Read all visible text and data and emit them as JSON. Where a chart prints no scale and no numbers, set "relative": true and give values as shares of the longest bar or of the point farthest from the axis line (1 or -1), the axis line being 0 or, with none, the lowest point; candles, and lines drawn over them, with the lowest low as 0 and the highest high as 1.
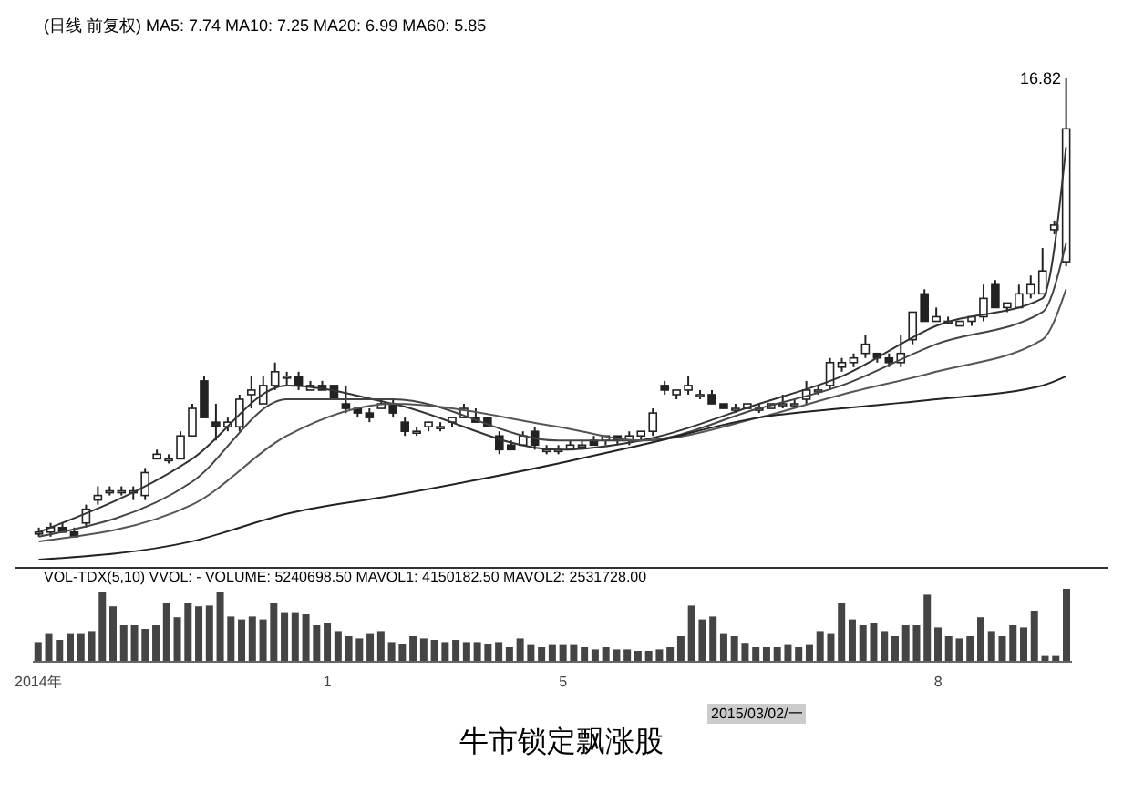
{
  "chart_data": [
    {
      "type": "candlestick",
      "title": "(日线 前复权) MA5: 7.74 MA10: 7.25 MA20: 6.99 MA60: 5.85",
      "relative": true,
      "tick_labels": false,
      "color": "#222222",
      "categories": [
        null,
        null,
        null,
        null,
        null,
        null,
        null,
        null,
        null,
        null,
        null,
        null,
        null,
        null,
        null,
        null,
        null,
        null,
        null,
        null,
        null,
        null,
        null,
        null,
        null,
        null,
        null,
        null,
        null,
        null,
        null,
        null,
        null,
        null,
        null,
        null,
        null,
        null,
        null,
        null,
        null,
        null,
        null,
        null,
        null,
        null,
        null,
        null,
        null,
        null,
        null,
        null,
        null,
        null,
        null,
        null,
        null,
        null,
        null,
        null,
        null,
        null,
        null,
        null,
        null,
        null,
        null,
        null,
        null,
        null,
        null,
        null,
        null,
        null,
        null,
        null,
        null,
        null,
        null,
        null,
        null,
        null,
        null,
        null,
        null,
        null,
        null,
        null
      ],
      "ohlc": [
        [
          0.01,
          0.02,
          0,
          0.01
        ],
        [
          0.01,
          0.03,
          0,
          0.02
        ],
        [
          0.02,
          0.03,
          0.01,
          0.01
        ],
        [
          0.01,
          0.02,
          0,
          0
        ],
        [
          0.03,
          0.07,
          0.02,
          0.06
        ],
        [
          0.08,
          0.11,
          0.07,
          0.09
        ],
        [
          0.1,
          0.11,
          0.09,
          0.1
        ],
        [
          0.1,
          0.11,
          0.09,
          0.1
        ],
        [
          0.1,
          0.11,
          0.08,
          0.1
        ],
        [
          0.09,
          0.15,
          0.08,
          0.14
        ],
        [
          0.17,
          0.19,
          0.17,
          0.18
        ],
        [
          0.17,
          0.18,
          0.16,
          0.17
        ],
        [
          0.17,
          0.23,
          0.17,
          0.22
        ],
        [
          0.22,
          0.29,
          0.22,
          0.28
        ],
        [
          0.34,
          0.35,
          0.26,
          0.26
        ],
        [
          0.25,
          0.29,
          0.21,
          0.24
        ],
        [
          0.24,
          0.26,
          0.23,
          0.25
        ],
        [
          0.24,
          0.31,
          0.23,
          0.3
        ],
        [
          0.31,
          0.35,
          0.28,
          0.32
        ],
        [
          0.29,
          0.35,
          0.29,
          0.33
        ],
        [
          0.33,
          0.38,
          0.32,
          0.36
        ],
        [
          0.35,
          0.36,
          0.33,
          0.35
        ],
        [
          0.35,
          0.36,
          0.32,
          0.33
        ],
        [
          0.32,
          0.34,
          0.32,
          0.33
        ],
        [
          0.33,
          0.34,
          0.32,
          0.32
        ],
        [
          0.33,
          0.33,
          0.3,
          0.3
        ],
        [
          0.29,
          0.33,
          0.27,
          0.28
        ],
        [
          0.28,
          0.28,
          0.26,
          0.27
        ],
        [
          0.27,
          0.28,
          0.25,
          0.26
        ],
        [
          0.28,
          0.3,
          0.28,
          0.29
        ],
        [
          0.29,
          0.3,
          0.26,
          0.27
        ],
        [
          0.25,
          0.26,
          0.22,
          0.23
        ],
        [
          0.23,
          0.24,
          0.22,
          0.23
        ],
        [
          0.24,
          0.25,
          0.23,
          0.25
        ],
        [
          0.24,
          0.25,
          0.23,
          0.24
        ],
        [
          0.25,
          0.26,
          0.24,
          0.26
        ],
        [
          0.26,
          0.29,
          0.26,
          0.28
        ],
        [
          0.26,
          0.28,
          0.25,
          0.25
        ],
        [
          0.26,
          0.26,
          0.24,
          0.24
        ],
        [
          0.22,
          0.23,
          0.18,
          0.19
        ],
        [
          0.2,
          0.21,
          0.19,
          0.19
        ],
        [
          0.2,
          0.23,
          0.2,
          0.22
        ],
        [
          0.23,
          0.24,
          0.19,
          0.2
        ],
        [
          0.19,
          0.2,
          0.18,
          0.19
        ],
        [
          0.19,
          0.2,
          0.18,
          0.19
        ],
        [
          0.19,
          0.21,
          0.19,
          0.2
        ],
        [
          0.2,
          0.21,
          0.19,
          0.2
        ],
        [
          0.21,
          0.22,
          0.2,
          0.2
        ],
        [
          0.21,
          0.22,
          0.2,
          0.22
        ],
        [
          0.22,
          0.22,
          0.2,
          0.21
        ],
        [
          0.21,
          0.23,
          0.2,
          0.22
        ],
        [
          0.22,
          0.23,
          0.21,
          0.23
        ],
        [
          0.23,
          0.28,
          0.22,
          0.27
        ],
        [
          0.33,
          0.34,
          0.31,
          0.32
        ],
        [
          0.31,
          0.32,
          0.3,
          0.32
        ],
        [
          0.32,
          0.35,
          0.31,
          0.33
        ],
        [
          0.31,
          0.32,
          0.3,
          0.31
        ],
        [
          0.31,
          0.32,
          0.29,
          0.29
        ],
        [
          0.29,
          0.29,
          0.28,
          0.28
        ],
        [
          0.28,
          0.29,
          0.27,
          0.28
        ],
        [
          0.28,
          0.29,
          0.28,
          0.29
        ],
        [
          0.28,
          0.29,
          0.27,
          0.28
        ],
        [
          0.28,
          0.29,
          0.28,
          0.29
        ],
        [
          0.29,
          0.31,
          0.28,
          0.29
        ],
        [
          0.29,
          0.3,
          0.28,
          0.29
        ],
        [
          0.3,
          0.34,
          0.29,
          0.32
        ],
        [
          0.32,
          0.33,
          0.31,
          0.32
        ],
        [
          0.33,
          0.39,
          0.32,
          0.38
        ],
        [
          0.37,
          0.39,
          0.36,
          0.38
        ],
        [
          0.38,
          0.4,
          0.37,
          0.39
        ],
        [
          0.4,
          0.44,
          0.39,
          0.42
        ],
        [
          0.4,
          0.4,
          0.38,
          0.39
        ],
        [
          0.39,
          0.4,
          0.37,
          0.38
        ],
        [
          0.38,
          0.44,
          0.37,
          0.4
        ],
        [
          0.43,
          0.49,
          0.42,
          0.49
        ],
        [
          0.53,
          0.54,
          0.47,
          0.47
        ],
        [
          0.47,
          0.5,
          0.47,
          0.48
        ],
        [
          0.47,
          0.48,
          0.47,
          0.47
        ],
        [
          0.46,
          0.47,
          0.46,
          0.47
        ],
        [
          0.47,
          0.48,
          0.46,
          0.48
        ],
        [
          0.48,
          0.55,
          0.47,
          0.52
        ],
        [
          0.55,
          0.56,
          0.5,
          0.5
        ],
        [
          0.5,
          0.51,
          0.49,
          0.51
        ],
        [
          0.5,
          0.55,
          0.5,
          0.53
        ],
        [
          0.53,
          0.57,
          0.52,
          0.55
        ],
        [
          0.53,
          0.63,
          0.53,
          0.58
        ],
        [
          0.67,
          0.69,
          0.66,
          0.68
        ],
        [
          0.6,
          1,
          0.59,
          0.89
        ]
      ],
      "series": [
        {
          "type": "line",
          "color": "#333333",
          "values": [
            0.01,
            null,
            null,
            null,
            null,
            null,
            null,
            null,
            null,
            null,
            null,
            null,
            null,
            0.17,
            null,
            null,
            null,
            null,
            null,
            null,
            null,
            0.33,
            null,
            null,
            null,
            null,
            null,
            null,
            null,
            null,
            0.29,
            null,
            null,
            null,
            null,
            null,
            null,
            null,
            null,
            null,
            null,
            null,
            null,
            null,
            0.19,
            null,
            null,
            null,
            null,
            null,
            null,
            0.21,
            null,
            null,
            null,
            null,
            null,
            null,
            null,
            null,
            null,
            0.29,
            null,
            null,
            null,
            null,
            null,
            null,
            0.35,
            null,
            null,
            null,
            null,
            null,
            null,
            null,
            0.46,
            null,
            null,
            null,
            null,
            null,
            null,
            null,
            null,
            0.52,
            null,
            0.85
          ]
        },
        {
          "type": "line",
          "color": "#444444",
          "values": [
            0,
            null,
            null,
            null,
            null,
            null,
            null,
            null,
            null,
            null,
            null,
            null,
            null,
            0.12,
            null,
            null,
            null,
            null,
            null,
            null,
            null,
            0.3,
            null,
            null,
            null,
            null,
            null,
            null,
            null,
            null,
            0.3,
            null,
            null,
            null,
            null,
            null,
            null,
            null,
            null,
            null,
            null,
            null,
            null,
            null,
            0.21,
            null,
            null,
            null,
            null,
            null,
            null,
            0.21,
            null,
            null,
            null,
            null,
            null,
            null,
            null,
            null,
            null,
            0.28,
            null,
            null,
            null,
            null,
            null,
            null,
            0.33,
            null,
            null,
            null,
            null,
            null,
            null,
            null,
            0.42,
            null,
            null,
            null,
            null,
            null,
            null,
            null,
            null,
            0.49,
            null,
            0.64
          ]
        },
        {
          "type": "line",
          "color": "#555555",
          "values": [
            -0.01,
            null,
            null,
            null,
            null,
            null,
            null,
            null,
            null,
            null,
            null,
            null,
            null,
            0.07,
            null,
            null,
            null,
            null,
            null,
            null,
            null,
            0.22,
            null,
            null,
            null,
            null,
            null,
            null,
            null,
            null,
            0.29,
            null,
            null,
            null,
            null,
            null,
            null,
            null,
            null,
            null,
            null,
            null,
            null,
            null,
            0.24,
            null,
            null,
            null,
            null,
            null,
            null,
            0.21,
            null,
            null,
            null,
            null,
            null,
            null,
            null,
            null,
            null,
            0.26,
            null,
            null,
            null,
            null,
            null,
            null,
            0.31,
            null,
            null,
            null,
            null,
            null,
            null,
            null,
            0.36,
            null,
            null,
            null,
            null,
            null,
            null,
            null,
            null,
            0.43,
            null,
            0.54
          ]
        },
        {
          "type": "line",
          "color": "#222222",
          "values": [
            -0.05,
            null,
            null,
            null,
            null,
            null,
            null,
            null,
            null,
            null,
            null,
            null,
            null,
            -0.01,
            null,
            null,
            null,
            null,
            null,
            null,
            null,
            0.05,
            null,
            null,
            null,
            null,
            null,
            null,
            null,
            null,
            0.09,
            null,
            null,
            null,
            null,
            null,
            null,
            null,
            null,
            null,
            null,
            null,
            null,
            null,
            0.16,
            null,
            null,
            null,
            null,
            null,
            null,
            0.2,
            null,
            null,
            null,
            null,
            null,
            null,
            null,
            null,
            null,
            0.26,
            null,
            null,
            null,
            null,
            null,
            null,
            0.28,
            null,
            null,
            null,
            null,
            null,
            null,
            null,
            0.3,
            null,
            null,
            null,
            null,
            null,
            null,
            null,
            null,
            0.33,
            null,
            0.35
          ]
        }
      ],
      "annotations": [
        "16.82"
      ]
    },
    {
      "type": "bar",
      "relative": true,
      "tick_labels": "x",
      "color": "#444444",
      "categories": [
        "2014年",
        null,
        null,
        null,
        null,
        null,
        null,
        null,
        null,
        null,
        null,
        null,
        null,
        null,
        null,
        null,
        null,
        null,
        null,
        null,
        null,
        null,
        null,
        null,
        null,
        null,
        null,
        "1",
        null,
        null,
        null,
        null,
        null,
        null,
        null,
        null,
        null,
        null,
        null,
        null,
        null,
        null,
        null,
        null,
        null,
        null,
        null,
        null,
        null,
        "5",
        null,
        null,
        null,
        null,
        null,
        null,
        null,
        null,
        null,
        null,
        null,
        null,
        null,
        null,
        null,
        null,
        null,
        null,
        null,
        null,
        null,
        null,
        null,
        null,
        null,
        null,
        null,
        null,
        null,
        null,
        null,
        null,
        null,
        null,
        "8",
        null,
        null,
        null,
        null,
        null,
        null,
        null,
        null,
        null,
        null,
        null,
        null
      ],
      "values": [
        0.27,
        0.38,
        0.3,
        0.38,
        0.38,
        0.42,
        0.95,
        0.76,
        0.5,
        0.5,
        0.45,
        0.5,
        0.8,
        0.61,
        0.8,
        0.76,
        0.77,
        0.95,
        0.62,
        0.58,
        0.62,
        0.58,
        0.8,
        0.68,
        0.68,
        0.65,
        0.5,
        0.53,
        0.42,
        0.35,
        0.32,
        0.38,
        0.42,
        0.27,
        0.24,
        0.35,
        0.32,
        0.3,
        0.27,
        0.3,
        0.27,
        0.27,
        0.24,
        0.27,
        0.2,
        0.32,
        0.23,
        0.2,
        0.23,
        0.23,
        0.23,
        0.2,
        0.17,
        0.2,
        0.17,
        0.17,
        0.15,
        0.15,
        0.17,
        0.2,
        0.35,
        0.77,
        0.58,
        0.62,
        0.38,
        0.35,
        0.26,
        0.2,
        0.2,
        0.2,
        0.23,
        0.2,
        0.23,
        0.42,
        0.38,
        0.8,
        0.58,
        0.5,
        0.53,
        0.42,
        0.35,
        0.5,
        0.5,
        0.92,
        0.47,
        0.35,
        0.32,
        0.35,
        0.61,
        0.42,
        0.35,
        0.5,
        0.47,
        0.7,
        0.08,
        0.08,
        1
      ],
      "annotations": [
        "VOL-TDX(5,10) VVOL: - VOLUME: 5240698.50 MAVOL1: 4150182.50 MAVOL2: 2531728.00",
        "2015/03/02/一",
        "牛市锁定飘涨股"
      ]
    }
  ]
}
